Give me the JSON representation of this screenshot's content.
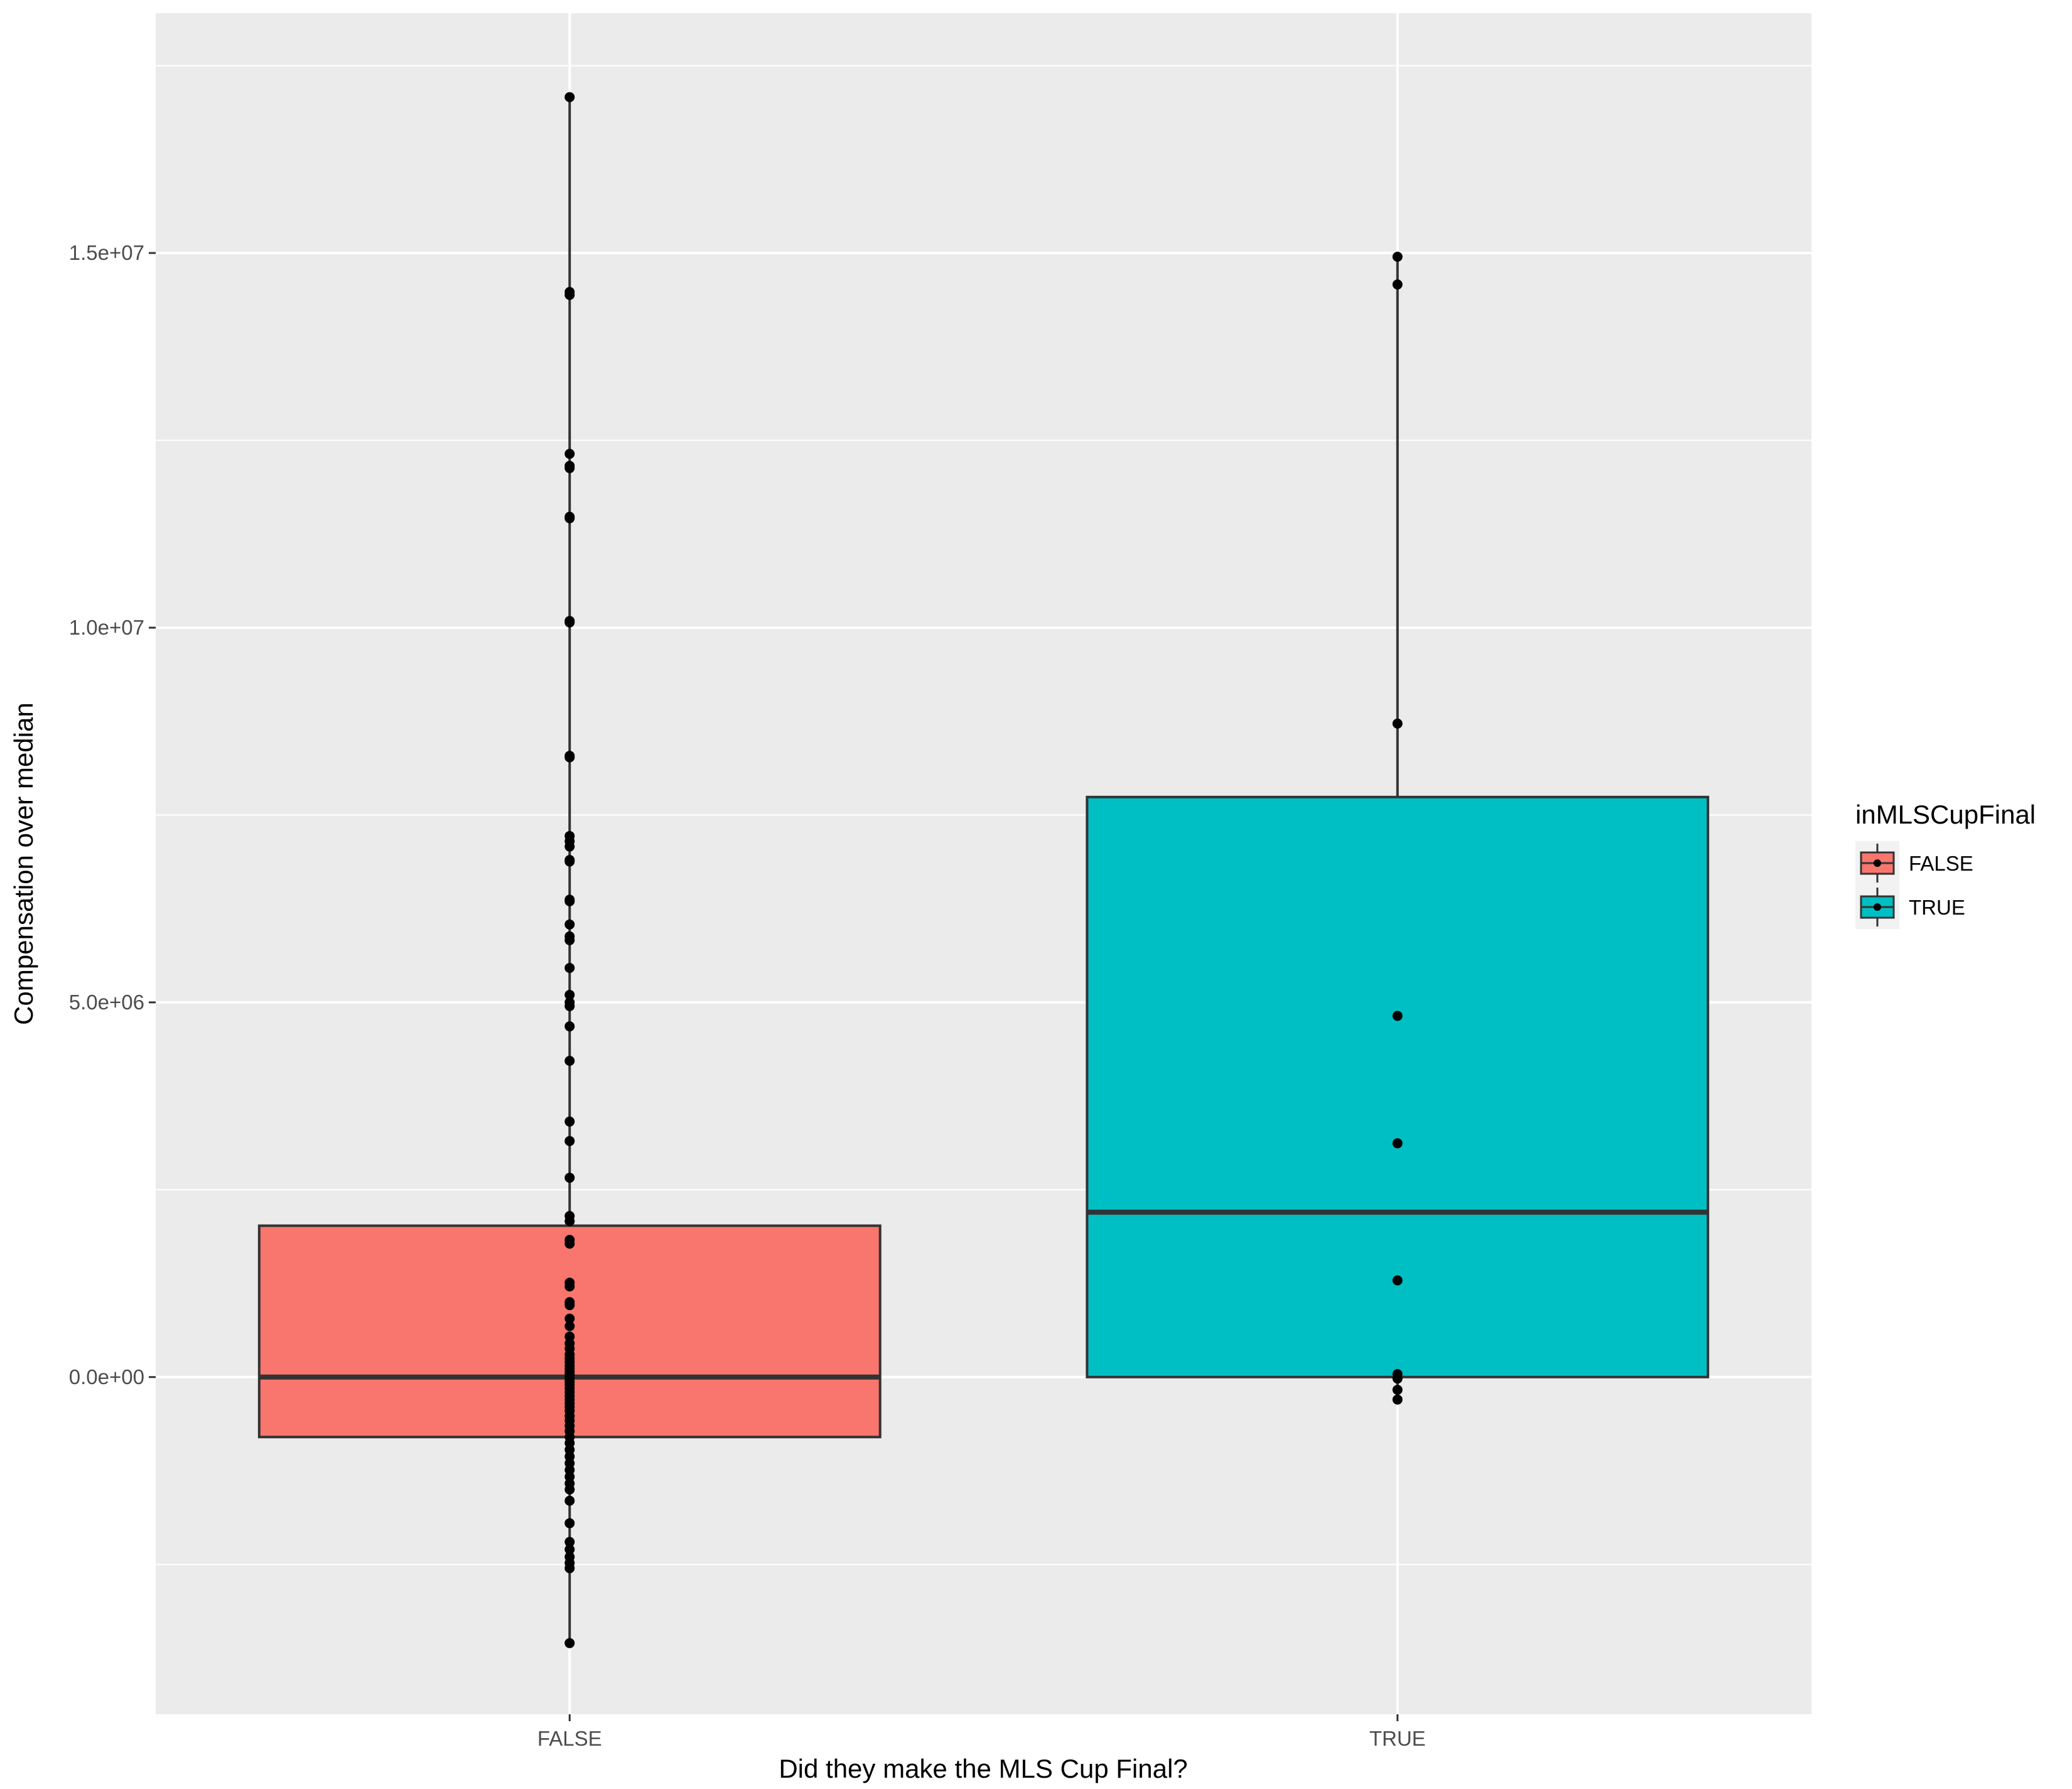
{
  "chart_data": {
    "type": "box",
    "xlabel": "Did they make the MLS Cup Final?",
    "ylabel": "Compensation over median",
    "categories": [
      "FALSE",
      "TRUE"
    ],
    "ylim": [
      -4500000,
      18200000
    ],
    "yticks": [
      {
        "value": 0,
        "label": "0.0e+00"
      },
      {
        "value": 5000000,
        "label": "5.0e+06"
      },
      {
        "value": 10000000,
        "label": "1.0e+07"
      },
      {
        "value": 15000000,
        "label": "1.5e+07"
      }
    ],
    "grid": true,
    "legend": {
      "title": "inMLSCupFinal",
      "placement": "right",
      "entries": [
        {
          "label": "FALSE",
          "color": "#f8766d"
        },
        {
          "label": "TRUE",
          "color": "#00bfc4"
        }
      ]
    },
    "boxes": [
      {
        "category": "FALSE",
        "color": "#f8766d",
        "whisker_low": -3550000,
        "q1": -800000,
        "median": 0,
        "q3": 2020000,
        "whisker_high": 17080000,
        "points": [
          17080000,
          14480000,
          14440000,
          12320000,
          12160000,
          12130000,
          11480000,
          11460000,
          10090000,
          10070000,
          8290000,
          8270000,
          7220000,
          7150000,
          7080000,
          6900000,
          6880000,
          6370000,
          6350000,
          6040000,
          5880000,
          5830000,
          5460000,
          5100000,
          5000000,
          4950000,
          4680000,
          4220000,
          3410000,
          3150000,
          2660000,
          2150000,
          2080000,
          1830000,
          1780000,
          1260000,
          1210000,
          1000000,
          960000,
          780000,
          680000,
          540000,
          450000,
          380000,
          300000,
          250000,
          200000,
          150000,
          110000,
          70000,
          30000,
          -20000,
          -60000,
          -100000,
          -150000,
          -200000,
          -250000,
          -300000,
          -350000,
          -400000,
          -450000,
          -520000,
          -580000,
          -650000,
          -720000,
          -800000,
          -880000,
          -970000,
          -1060000,
          -1150000,
          -1240000,
          -1330000,
          -1420000,
          -1500000,
          -1650000,
          -1950000,
          -2200000,
          -2300000,
          -2400000,
          -2480000,
          -2550000,
          -3550000
        ]
      },
      {
        "category": "TRUE",
        "color": "#00bfc4",
        "whisker_low": -300000,
        "q1": 0,
        "median": 2200000,
        "q3": 7740000,
        "whisker_high": 14950000,
        "points": [
          14950000,
          14580000,
          8720000,
          4820000,
          3120000,
          1290000,
          40000,
          -20000,
          -170000,
          -300000
        ]
      }
    ]
  }
}
